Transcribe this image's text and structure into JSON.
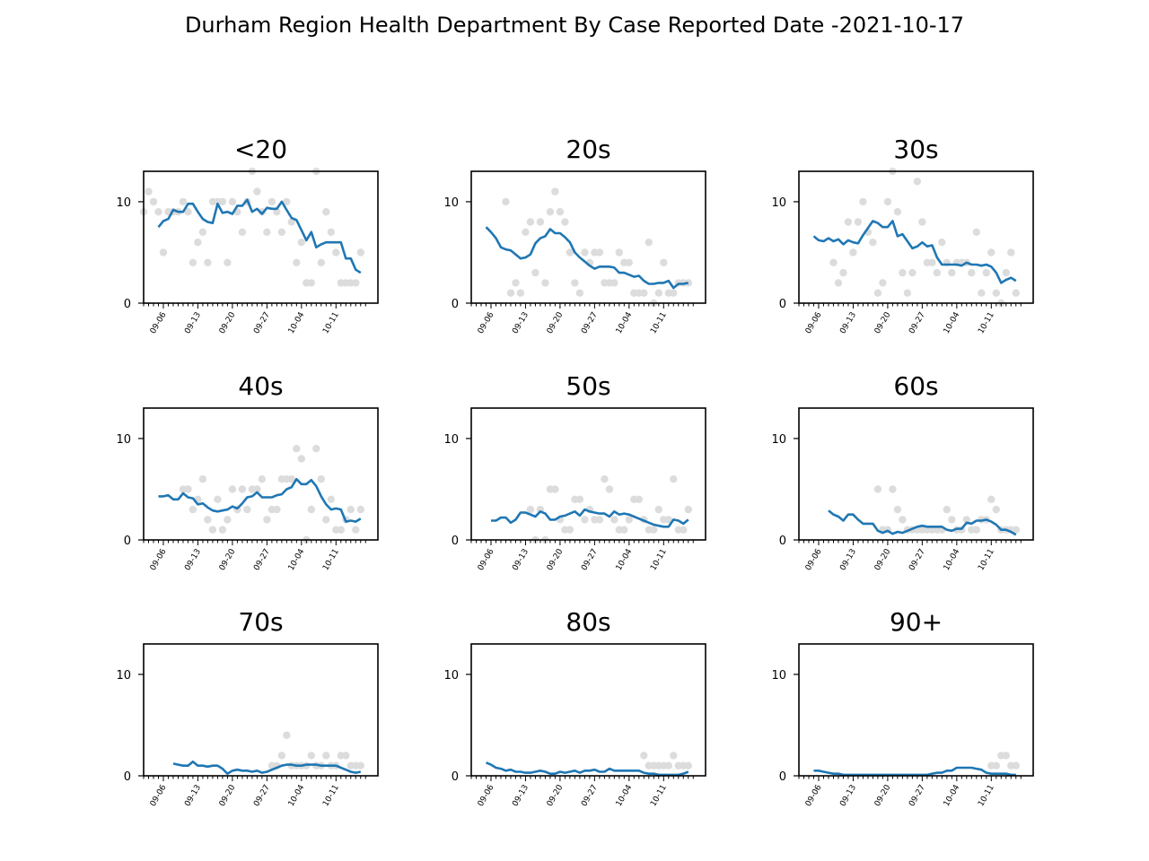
{
  "figure_title": "Durham Region Health Department By Case Reported Date -2021-10-17",
  "colors": {
    "line": "#1f77b4",
    "points": "#dcdcdc",
    "axis": "#000000"
  },
  "chart_data": [
    {
      "type": "scatter+line",
      "title": "<20",
      "ylim": [
        0,
        13
      ],
      "yticks": [
        0,
        10
      ],
      "x_tick_labels": [
        "09-06",
        "09-13",
        "09-20",
        "09-27",
        "10-04",
        "10-11"
      ],
      "x_start_date": "2021-09-02",
      "x_end_date": "2021-10-16",
      "points": [
        9,
        11,
        10,
        9,
        5,
        9,
        9,
        9,
        10,
        9,
        4,
        6,
        7,
        4,
        10,
        10,
        10,
        4,
        10,
        9,
        7,
        10,
        13,
        11,
        9,
        7,
        10,
        9,
        7,
        10,
        8,
        4,
        6,
        2,
        2,
        13,
        4,
        9,
        7,
        5,
        2,
        2,
        2,
        2,
        5
      ],
      "rolling": [
        7.5,
        8.1,
        8.3,
        9.2,
        9.0,
        9.0,
        9.8,
        9.8,
        9.0,
        8.3,
        8.0,
        7.9,
        9.8,
        8.9,
        9.0,
        8.8,
        9.6,
        9.6,
        10.2,
        9.0,
        9.3,
        8.8,
        9.4,
        9.3,
        9.3,
        10.0,
        9.2,
        8.4,
        8.2,
        7.2,
        6.2,
        7.0,
        5.5,
        5.8,
        6.0,
        6.0,
        6.0,
        6.0,
        4.4,
        4.4,
        3.3,
        3.0
      ]
    },
    {
      "type": "scatter+line",
      "title": "20s",
      "ylim": [
        0,
        13
      ],
      "yticks": [
        0,
        10
      ],
      "x_tick_labels": [
        "09-06",
        "09-13",
        "09-20",
        "09-27",
        "10-04",
        "10-11"
      ],
      "x_start_date": "2021-09-02",
      "x_end_date": "2021-10-16",
      "points": [
        10,
        1,
        2,
        1,
        7,
        8,
        3,
        8,
        2,
        9,
        11,
        9,
        8,
        5,
        2,
        1,
        5,
        4,
        5,
        5,
        2,
        2,
        2,
        5,
        4,
        4,
        1,
        1,
        1,
        6,
        0,
        1,
        4,
        1,
        1,
        2,
        2,
        2
      ],
      "rolling": [
        7.5,
        7.0,
        6.4,
        5.5,
        5.3,
        5.2,
        4.8,
        4.4,
        4.5,
        4.8,
        5.9,
        6.4,
        6.6,
        7.3,
        6.9,
        6.9,
        6.5,
        6.0,
        5.0,
        4.5,
        4.1,
        3.7,
        3.4,
        3.6,
        3.6,
        3.6,
        3.5,
        3.0,
        3.0,
        2.8,
        2.6,
        2.7,
        2.2,
        1.9,
        1.9,
        2.0,
        2.0,
        2.2,
        1.5,
        1.9,
        1.9,
        2.0
      ]
    },
    {
      "type": "scatter+line",
      "title": "30s",
      "ylim": [
        0,
        13
      ],
      "yticks": [
        0,
        10
      ],
      "x_tick_labels": [
        "09-06",
        "09-13",
        "09-20",
        "09-27",
        "10-04",
        "10-11"
      ],
      "x_start_date": "2021-09-02",
      "x_end_date": "2021-10-16",
      "points": [
        4,
        2,
        3,
        8,
        5,
        8,
        10,
        7,
        6,
        1,
        2,
        10,
        13,
        9,
        3,
        1,
        3,
        12,
        8,
        4,
        4,
        3,
        6,
        4,
        3,
        4,
        4,
        4,
        3,
        7,
        1,
        3,
        5,
        1,
        0,
        3,
        5,
        1
      ],
      "rolling": [
        6.6,
        6.2,
        6.1,
        6.4,
        6.1,
        6.3,
        5.8,
        6.2,
        6.0,
        5.9,
        6.7,
        7.4,
        8.1,
        7.9,
        7.5,
        7.5,
        8.1,
        6.6,
        6.8,
        6.1,
        5.4,
        5.6,
        6.0,
        5.6,
        5.7,
        4.5,
        3.8,
        3.8,
        3.8,
        3.8,
        3.7,
        4.0,
        3.8,
        3.8,
        3.7,
        3.8,
        3.6,
        3.0,
        2.0,
        2.3,
        2.5,
        2.2
      ]
    },
    {
      "type": "scatter+line",
      "title": "40s",
      "ylim": [
        0,
        13
      ],
      "yticks": [
        0,
        10
      ],
      "x_tick_labels": [
        "09-06",
        "09-13",
        "09-20",
        "09-27",
        "10-04",
        "10-11"
      ],
      "x_start_date": "2021-09-02",
      "x_end_date": "2021-10-16",
      "points": [
        5,
        5,
        3,
        4,
        6,
        2,
        1,
        4,
        1,
        2,
        5,
        3,
        5,
        3,
        5,
        5,
        6,
        2,
        3,
        3,
        6,
        6,
        6,
        9,
        8,
        0,
        3,
        9,
        6,
        2,
        4,
        1,
        1,
        2,
        3,
        1,
        3
      ],
      "rolling": [
        4.3,
        4.3,
        4.4,
        4.0,
        4.0,
        4.6,
        4.2,
        4.1,
        3.5,
        3.6,
        3.2,
        2.9,
        2.8,
        2.9,
        3.0,
        3.3,
        3.1,
        3.6,
        4.2,
        4.3,
        4.7,
        4.2,
        4.2,
        4.2,
        4.4,
        4.5,
        5.0,
        5.2,
        6.0,
        5.5,
        5.5,
        5.9,
        5.3,
        4.3,
        3.5,
        3.0,
        3.1,
        3.0,
        1.8,
        1.9,
        1.8,
        2.1
      ]
    },
    {
      "type": "scatter+line",
      "title": "50s",
      "ylim": [
        0,
        13
      ],
      "yticks": [
        0,
        10
      ],
      "x_tick_labels": [
        "09-06",
        "09-13",
        "09-20",
        "09-27",
        "10-04",
        "10-11"
      ],
      "x_start_date": "2021-09-02",
      "x_end_date": "2021-10-16",
      "points": [
        3,
        0,
        3,
        0,
        5,
        5,
        2,
        1,
        1,
        4,
        4,
        2,
        3,
        2,
        2,
        6,
        5,
        2,
        1,
        1,
        2,
        4,
        4,
        2,
        1,
        1,
        3,
        2,
        2,
        6,
        1,
        1,
        3
      ],
      "rolling": [
        1.9,
        1.9,
        2.2,
        2.2,
        1.7,
        2.0,
        2.7,
        2.7,
        2.5,
        2.3,
        2.8,
        2.6,
        2.0,
        2.0,
        2.3,
        2.4,
        2.6,
        2.8,
        2.4,
        3.0,
        2.8,
        2.7,
        2.6,
        2.6,
        2.3,
        2.8,
        2.5,
        2.6,
        2.5,
        2.3,
        2.1,
        1.9,
        1.7,
        1.5,
        1.4,
        1.3,
        1.3,
        2.0,
        1.9,
        1.6,
        2.0
      ]
    },
    {
      "type": "scatter+line",
      "title": "60s",
      "ylim": [
        0,
        13
      ],
      "yticks": [
        0,
        10
      ],
      "x_tick_labels": [
        "09-06",
        "09-13",
        "09-20",
        "09-27",
        "10-04",
        "10-11"
      ],
      "x_start_date": "2021-09-02",
      "x_end_date": "2021-10-16",
      "points": [
        5,
        1,
        1,
        5,
        3,
        2,
        1,
        1,
        1,
        1,
        1,
        1,
        1,
        1,
        3,
        2,
        1,
        1,
        2,
        1,
        1,
        2,
        2,
        4,
        3,
        1,
        1,
        1,
        1
      ],
      "rolling": [
        2.9,
        2.5,
        2.3,
        1.9,
        2.5,
        2.5,
        2.0,
        1.6,
        1.6,
        1.6,
        0.9,
        0.7,
        0.9,
        0.6,
        0.8,
        0.7,
        0.9,
        1.1,
        1.3,
        1.4,
        1.3,
        1.3,
        1.3,
        1.3,
        1.0,
        0.9,
        1.1,
        1.1,
        1.7,
        1.6,
        1.9,
        1.9,
        2.0,
        1.8,
        1.5,
        1.0,
        1.0,
        0.8,
        0.5
      ]
    },
    {
      "type": "scatter+line",
      "title": "70s",
      "ylim": [
        0,
        13
      ],
      "yticks": [
        0,
        10
      ],
      "x_tick_labels": [
        "09-06",
        "09-13",
        "09-20",
        "09-27",
        "10-04",
        "10-11"
      ],
      "x_start_date": "2021-09-02",
      "x_end_date": "2021-10-16",
      "points": [
        1,
        1,
        2,
        4,
        1,
        1,
        1,
        1,
        2,
        1,
        1,
        2,
        1,
        1,
        2,
        2,
        1,
        1,
        1
      ],
      "rolling": [
        1.2,
        1.1,
        1.0,
        1.0,
        1.4,
        1.0,
        1.0,
        0.9,
        1.0,
        1.0,
        0.7,
        0.2,
        0.5,
        0.6,
        0.5,
        0.5,
        0.4,
        0.5,
        0.3,
        0.4,
        0.6,
        0.8,
        1.0,
        1.1,
        1.1,
        1.0,
        1.0,
        1.1,
        1.1,
        1.1,
        1.0,
        1.0,
        1.0,
        1.0,
        0.8,
        0.6,
        0.4,
        0.3,
        0.4
      ]
    },
    {
      "type": "scatter+line",
      "title": "80s",
      "ylim": [
        0,
        13
      ],
      "yticks": [
        0,
        10
      ],
      "x_tick_labels": [
        "09-06",
        "09-13",
        "09-20",
        "09-27",
        "10-04",
        "10-11"
      ],
      "x_start_date": "2021-09-02",
      "x_end_date": "2021-10-16",
      "points": [
        2,
        1,
        1,
        1,
        1,
        1,
        2,
        1,
        1,
        1
      ],
      "rolling": [
        1.3,
        1.1,
        0.8,
        0.7,
        0.5,
        0.6,
        0.4,
        0.4,
        0.3,
        0.3,
        0.4,
        0.5,
        0.4,
        0.2,
        0.2,
        0.4,
        0.3,
        0.4,
        0.5,
        0.3,
        0.5,
        0.5,
        0.6,
        0.4,
        0.4,
        0.7,
        0.5,
        0.5,
        0.5,
        0.5,
        0.5,
        0.5,
        0.3,
        0.2,
        0.2,
        0.1,
        0.1,
        0.1,
        0.1,
        0.1,
        0.2,
        0.4
      ]
    },
    {
      "type": "scatter+line",
      "title": "90+",
      "ylim": [
        0,
        13
      ],
      "yticks": [
        0,
        10
      ],
      "x_tick_labels": [
        "09-06",
        "09-13",
        "09-20",
        "09-27",
        "10-04",
        "10-11"
      ],
      "x_start_date": "2021-09-02",
      "x_end_date": "2021-10-16",
      "points": [
        1,
        1,
        2,
        2,
        1,
        1
      ],
      "rolling": [
        0.5,
        0.5,
        0.4,
        0.3,
        0.2,
        0.2,
        0.1,
        0.1,
        0.1,
        0.1,
        0.1,
        0.1,
        0.1,
        0.1,
        0.1,
        0.1,
        0.1,
        0.1,
        0.1,
        0.1,
        0.1,
        0.1,
        0.1,
        0.1,
        0.2,
        0.3,
        0.3,
        0.5,
        0.5,
        0.8,
        0.8,
        0.8,
        0.8,
        0.7,
        0.6,
        0.3,
        0.2,
        0.2,
        0.2,
        0.2,
        0.1,
        0.1
      ]
    }
  ]
}
